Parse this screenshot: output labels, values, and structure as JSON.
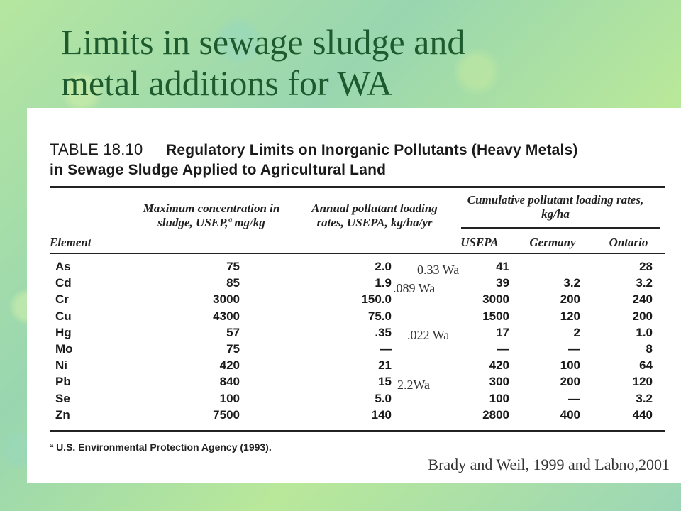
{
  "title": {
    "line1": "Limits in sewage sludge and",
    "line2": "metal additions for WA"
  },
  "table": {
    "number": "TABLE 18.10",
    "caption_line1": "Regulatory Limits on Inorganic Pollutants (Heavy Metals)",
    "caption_line2": "in Sewage Sludge Applied to Agricultural Land",
    "headers": {
      "element": "Element",
      "max_conc": "Maximum concentration in sludge, USEP,ª mg/kg",
      "annual": "Annual pollutant loading rates, USEPA, kg/ha/yr",
      "cumulative": "Cumulative pollutant loading rates, kg/ha",
      "usepa": "USEPA",
      "germany": "Germany",
      "ontario": "Ontario"
    },
    "rows": [
      {
        "element": "As",
        "max": "75",
        "annual": "2.0",
        "usepa": "41",
        "germany": "",
        "ontario": "28"
      },
      {
        "element": "Cd",
        "max": "85",
        "annual": "1.9",
        "usepa": "39",
        "germany": "3.2",
        "ontario": "3.2"
      },
      {
        "element": "Cr",
        "max": "3000",
        "annual": "150.0",
        "usepa": "3000",
        "germany": "200",
        "ontario": "240"
      },
      {
        "element": "Cu",
        "max": "4300",
        "annual": "75.0",
        "usepa": "1500",
        "germany": "120",
        "ontario": "200"
      },
      {
        "element": "Hg",
        "max": "57",
        "annual": ".35",
        "usepa": "17",
        "germany": "2",
        "ontario": "1.0"
      },
      {
        "element": "Mo",
        "max": "75",
        "annual": "—",
        "usepa": "—",
        "germany": "—",
        "ontario": "8"
      },
      {
        "element": "Ni",
        "max": "420",
        "annual": "21",
        "usepa": "420",
        "germany": "100",
        "ontario": "64"
      },
      {
        "element": "Pb",
        "max": "840",
        "annual": "15",
        "usepa": "300",
        "germany": "200",
        "ontario": "120"
      },
      {
        "element": "Se",
        "max": "100",
        "annual": "5.0",
        "usepa": "100",
        "germany": "—",
        "ontario": "3.2"
      },
      {
        "element": "Zn",
        "max": "7500",
        "annual": "140",
        "usepa": "2800",
        "germany": "400",
        "ontario": "440"
      }
    ],
    "footnote": "ª U.S. Environmental Protection Agency (1993)."
  },
  "annotations": {
    "as": "0.33 Wa",
    "cd": ".089 Wa",
    "hg": ".022 Wa",
    "pb": "2.2Wa"
  },
  "source": "Brady and Weil, 1999 and Labno,2001"
}
